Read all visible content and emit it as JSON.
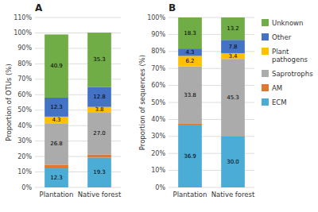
{
  "chart_data": [
    {
      "type": "bar",
      "stacked": true,
      "title": "A",
      "y_label": "Proportion of OTUs (%)",
      "categories": [
        "Plantation",
        "Native forest"
      ],
      "series": [
        {
          "name": "ECM",
          "color": "#4BACD6",
          "values": [
            12.3,
            19.3
          ],
          "value_labels": [
            "12.3",
            "19.3"
          ]
        },
        {
          "name": "AM",
          "color": "#E07832",
          "values": [
            2.4,
            2.0
          ],
          "value_labels": [
            null,
            null
          ]
        },
        {
          "name": "Saprotrophs",
          "color": "#ABABAB",
          "values": [
            26.8,
            27.0
          ],
          "value_labels": [
            "26.8",
            "27.0"
          ]
        },
        {
          "name": "Plant\npathogens",
          "color": "#FFC000",
          "values": [
            4.3,
            3.8
          ],
          "value_labels": [
            "4.3",
            "3.8"
          ]
        },
        {
          "name": "Other",
          "color": "#4472C4",
          "values": [
            12.3,
            12.8
          ],
          "value_labels": [
            "12.3",
            "12.8"
          ]
        },
        {
          "name": "Unknown",
          "color": "#70AD47",
          "values": [
            40.9,
            35.3
          ],
          "value_labels": [
            "40.9",
            "35.3"
          ]
        }
      ],
      "ylim": [
        0,
        110
      ],
      "yticks": [
        {
          "value": 0,
          "label": "0%"
        },
        {
          "value": 10,
          "label": "10%"
        },
        {
          "value": 20,
          "label": "20%"
        },
        {
          "value": 30,
          "label": "30%"
        },
        {
          "value": 40,
          "label": "40%"
        },
        {
          "value": 50,
          "label": "50%"
        },
        {
          "value": 60,
          "label": "60%"
        },
        {
          "value": 70,
          "label": "70%"
        },
        {
          "value": 80,
          "label": "80%"
        },
        {
          "value": 90,
          "label": "90%"
        },
        {
          "value": 100,
          "label": "100%"
        },
        {
          "value": 110,
          "label": "110%"
        }
      ],
      "grid": true,
      "data_labels": true
    },
    {
      "type": "bar",
      "stacked": true,
      "title": "B",
      "y_label": "Proportion of sequences (%)",
      "categories": [
        "Plantation",
        "Native forest"
      ],
      "series": [
        {
          "name": "ECM",
          "color": "#4BACD6",
          "values": [
            36.9,
            30.0
          ],
          "value_labels": [
            "36.9",
            "30.0"
          ]
        },
        {
          "name": "AM",
          "color": "#E07832",
          "values": [
            0.5,
            0.3
          ],
          "value_labels": [
            null,
            null
          ]
        },
        {
          "name": "Saprotrophs",
          "color": "#ABABAB",
          "values": [
            33.8,
            45.3
          ],
          "value_labels": [
            "33.8",
            "45.3"
          ]
        },
        {
          "name": "Plant\npathogens",
          "color": "#FFC000",
          "values": [
            6.2,
            3.4
          ],
          "value_labels": [
            "6.2",
            "3.4"
          ]
        },
        {
          "name": "Other",
          "color": "#4472C4",
          "values": [
            4.3,
            7.8
          ],
          "value_labels": [
            "4.3",
            "7.8"
          ]
        },
        {
          "name": "Unknown",
          "color": "#70AD47",
          "values": [
            18.3,
            13.2
          ],
          "value_labels": [
            "18.3",
            "13.2"
          ]
        }
      ],
      "ylim": [
        0,
        100
      ],
      "yticks": [
        {
          "value": 0,
          "label": "0%"
        },
        {
          "value": 10,
          "label": "10%"
        },
        {
          "value": 20,
          "label": "20%"
        },
        {
          "value": 30,
          "label": "30%"
        },
        {
          "value": 40,
          "label": "40%"
        },
        {
          "value": 50,
          "label": "50%"
        },
        {
          "value": 60,
          "label": "60%"
        },
        {
          "value": 70,
          "label": "70%"
        },
        {
          "value": 80,
          "label": "80%"
        },
        {
          "value": 90,
          "label": "90%"
        },
        {
          "value": 100,
          "label": "100%"
        }
      ],
      "grid": true,
      "data_labels": true,
      "legend": "right"
    }
  ]
}
